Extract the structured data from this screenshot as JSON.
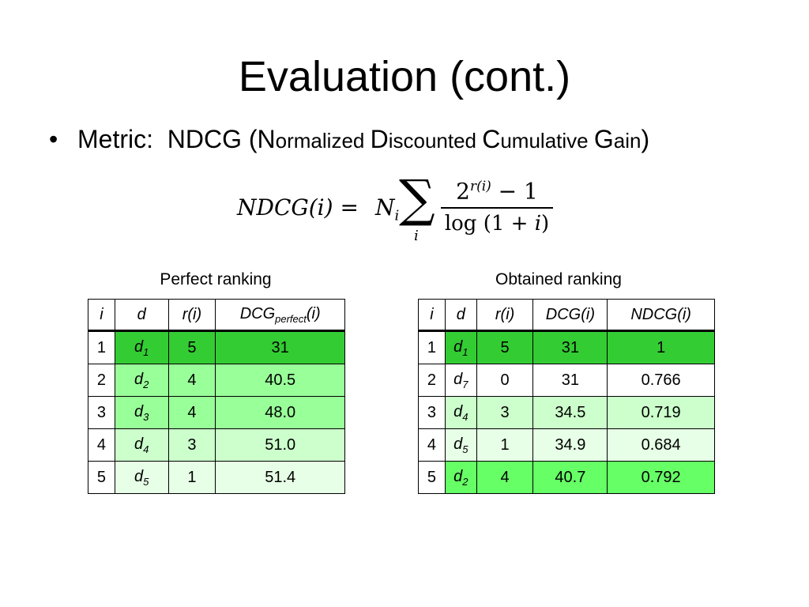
{
  "slide": {
    "title": "Evaluation (cont.)",
    "bullet": {
      "label": "Metric:",
      "t1": "NDCG (N",
      "t2": "ormalized ",
      "t3": "D",
      "t4": "iscounted ",
      "t5": "C",
      "t6": "umulative ",
      "t7": "G",
      "t8": "ain",
      "t9": ")"
    },
    "formula": {
      "lhs": "NDCG(i) =",
      "n": "N",
      "n_sub": "i",
      "sigma": "∑",
      "sigma_sub": "i",
      "num_base": "2",
      "num_exp": "r(i)",
      "num_rest": " − 1",
      "den_prefix": "log (1 + ",
      "den_var": "i",
      "den_suffix": ")"
    }
  },
  "perfect": {
    "caption": "Perfect ranking",
    "headers": {
      "i": "i",
      "d": "d",
      "r": "r(i)",
      "dcg_main": "DCG",
      "dcg_sub": "perfect",
      "dcg_tail": "(i)"
    },
    "rows": [
      {
        "i": "1",
        "d": "d",
        "d_sub": "1",
        "r": "5",
        "dcg": "31"
      },
      {
        "i": "2",
        "d": "d",
        "d_sub": "2",
        "r": "4",
        "dcg": "40.5"
      },
      {
        "i": "3",
        "d": "d",
        "d_sub": "3",
        "r": "4",
        "dcg": "48.0"
      },
      {
        "i": "4",
        "d": "d",
        "d_sub": "4",
        "r": "3",
        "dcg": "51.0"
      },
      {
        "i": "5",
        "d": "d",
        "d_sub": "5",
        "r": "1",
        "dcg": "51.4"
      }
    ]
  },
  "obtained": {
    "caption": "Obtained ranking",
    "headers": {
      "i": "i",
      "d": "d",
      "r": "r(i)",
      "dcg": "DCG(i)",
      "ndcg": "NDCG(i)"
    },
    "rows": [
      {
        "i": "1",
        "d": "d",
        "d_sub": "1",
        "r": "5",
        "dcg": "31",
        "ndcg": "1"
      },
      {
        "i": "2",
        "d": "d",
        "d_sub": "7",
        "r": "0",
        "dcg": "31",
        "ndcg": "0.766"
      },
      {
        "i": "3",
        "d": "d",
        "d_sub": "4",
        "r": "3",
        "dcg": "34.5",
        "ndcg": "0.719"
      },
      {
        "i": "4",
        "d": "d",
        "d_sub": "5",
        "r": "1",
        "dcg": "34.9",
        "ndcg": "0.684"
      },
      {
        "i": "5",
        "d": "d",
        "d_sub": "2",
        "r": "4",
        "dcg": "40.7",
        "ndcg": "0.792"
      }
    ]
  },
  "colors": {
    "dark_green": "#33cc33",
    "medium_green": "#99ff99",
    "light_green": "#ccffcc",
    "pale_green": "#e6ffe6",
    "bright_green": "#66ff66"
  }
}
